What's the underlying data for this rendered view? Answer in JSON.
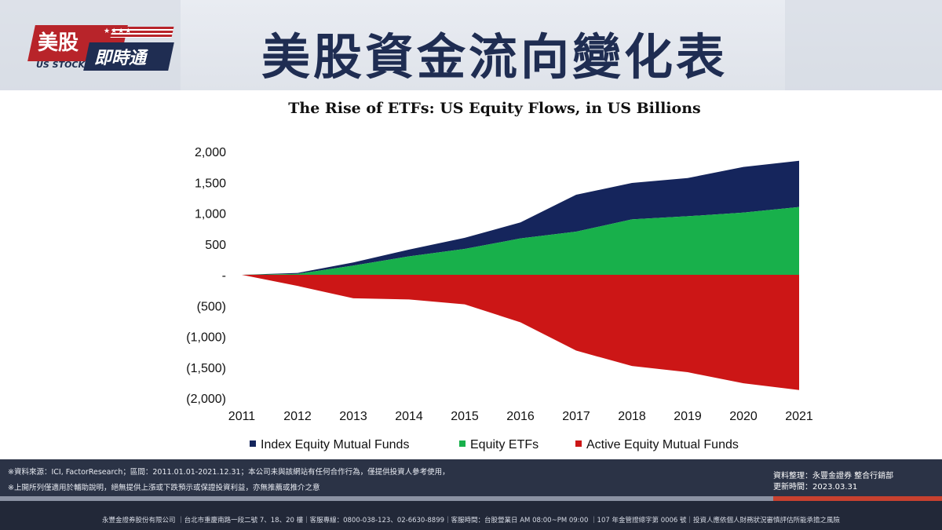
{
  "header": {
    "logo_main": "美股",
    "logo_stars": "★★★★",
    "logo_sub": "US STOCK",
    "logo_badge": "即時通",
    "title": "美股資金流向變化表"
  },
  "colors": {
    "index_funds": "#15255c",
    "equity_etfs": "#18b04b",
    "active_funds": "#cc1616"
  },
  "chart_data": {
    "type": "area",
    "title": "The Rise of ETFs: US Equity Flows, in US Billions",
    "xlabel": "",
    "ylabel": "",
    "ylim": [
      -2000,
      2000
    ],
    "x": [
      2011,
      2012,
      2013,
      2014,
      2015,
      2016,
      2017,
      2018,
      2019,
      2020,
      2021
    ],
    "y_tick_values": [
      2000,
      1500,
      1000,
      500,
      0,
      -500,
      -1000,
      -1500,
      -2000
    ],
    "y_tick_labels": [
      "2,000",
      "1,500",
      "1,000",
      "500",
      "-",
      "(500)",
      "(1,000)",
      "(1,500)",
      "(2,000)"
    ],
    "grid": false,
    "legend_position": "bottom",
    "series": [
      {
        "name": "Index Equity Mutual Funds",
        "values": [
          0,
          15,
          50,
          110,
          180,
          260,
          600,
          590,
          620,
          740,
          750
        ]
      },
      {
        "name": "Equity ETFs",
        "values": [
          0,
          15,
          150,
          300,
          420,
          590,
          700,
          900,
          950,
          1010,
          1100
        ]
      },
      {
        "name": "Active Equity Mutual Funds",
        "values": [
          0,
          -180,
          -380,
          -400,
          -480,
          -770,
          -1230,
          -1480,
          -1580,
          -1760,
          -1870
        ]
      }
    ]
  },
  "footer": {
    "source_line": "※資料來源：ICI, FactorResearch；區間：2011.01.01-2021.12.31；本公司未與該網站有任何合作行為，僅提供投資人參考使用，",
    "disclaimer_line": "※上開所列僅適用於輔助說明，絕無提供上漲或下跌預示或保證投資利益，亦無推薦或推介之意",
    "compiled_by_label": "資料整理：",
    "compiled_by": "永豐金證券 整合行銷部",
    "updated_label": "更新時間：",
    "updated": "2023.03.31",
    "company_info": "永豐金證券股份有限公司 ｜台北市重慶南路一段二號 7、18、20 樓｜客服專線：0800-038-123、02-6630-8899｜客服時間：台股營業日 AM 08:00~PM 09:00 ｜107 年金管證總字第 0006 號｜投資人應依個人財務狀況審慎評估所能承擔之風險"
  }
}
